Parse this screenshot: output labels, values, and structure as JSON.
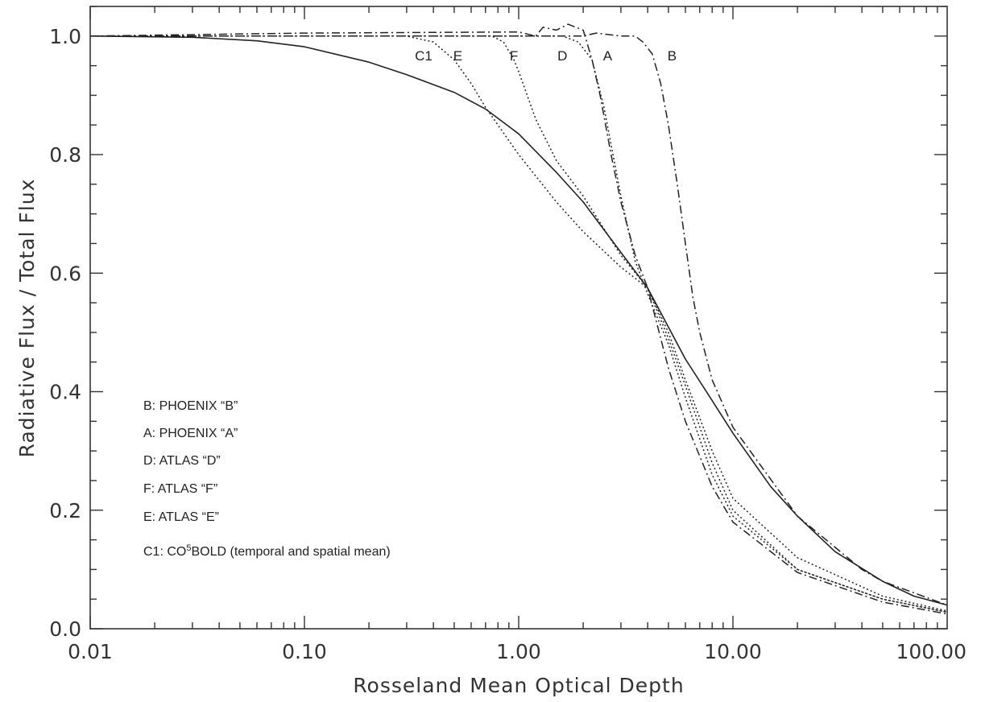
{
  "chart_data": {
    "type": "line",
    "title": "",
    "xlabel": "Rosseland Mean Optical Depth",
    "ylabel": "Radiative Flux / Total Flux",
    "xscale": "log",
    "xlim": [
      0.01,
      100
    ],
    "ylim": [
      0.0,
      1.05
    ],
    "grid": false,
    "x_tick_labels": [
      "0.01",
      "0.10",
      "1.00",
      "10.00",
      "100.00"
    ],
    "x_tick_values": [
      0.01,
      0.1,
      1,
      10,
      100
    ],
    "y_tick_labels": [
      "0.0",
      "0.2",
      "0.4",
      "0.6",
      "0.8",
      "1.0"
    ],
    "y_tick_values": [
      0.0,
      0.2,
      0.4,
      0.6,
      0.8,
      1.0
    ],
    "legend_position": "lower-left",
    "legend": [
      {
        "key": "B",
        "text": "B: PHOENIX “B”"
      },
      {
        "key": "A",
        "text": "A: PHOENIX “A”"
      },
      {
        "key": "D",
        "text": "D: ATLAS “D”"
      },
      {
        "key": "F",
        "text": "F:  ATLAS “F”"
      },
      {
        "key": "E",
        "text": "E:  ATLAS “E”"
      },
      {
        "key": "C1",
        "text_pre": "C1: CO",
        "text_sup": "5",
        "text_post": "BOLD  (temporal and spatial mean)"
      }
    ],
    "curve_labels": [
      {
        "text": "C1",
        "x": 0.36,
        "y": 0.985
      },
      {
        "text": "E",
        "x": 0.52,
        "y": 0.985
      },
      {
        "text": "F",
        "x": 0.95,
        "y": 0.985
      },
      {
        "text": "D",
        "x": 1.6,
        "y": 0.985
      },
      {
        "text": "A",
        "x": 2.6,
        "y": 0.985
      },
      {
        "text": "B",
        "x": 5.2,
        "y": 0.985
      }
    ],
    "series": [
      {
        "key": "C1",
        "style": "solid",
        "x": [
          0.01,
          0.03,
          0.06,
          0.1,
          0.2,
          0.3,
          0.5,
          0.7,
          1.0,
          1.5,
          2.0,
          3.0,
          4.0,
          6.0,
          8.0,
          10.0,
          15.0,
          20.0,
          30.0,
          50.0,
          70.0,
          100.0
        ],
        "y": [
          1.0,
          0.998,
          0.992,
          0.982,
          0.956,
          0.935,
          0.905,
          0.877,
          0.835,
          0.77,
          0.72,
          0.635,
          0.575,
          0.455,
          0.385,
          0.33,
          0.24,
          0.19,
          0.13,
          0.08,
          0.055,
          0.04
        ]
      },
      {
        "key": "E",
        "style": "dotted",
        "x": [
          0.01,
          0.1,
          0.3,
          0.4,
          0.5,
          0.6,
          0.7,
          1.0,
          1.5,
          2.0,
          3.0,
          4.0,
          5.0,
          6.0,
          8.0,
          10.0,
          20.0,
          50.0,
          100.0
        ],
        "y": [
          1.0,
          1.0,
          1.0,
          0.99,
          0.96,
          0.92,
          0.88,
          0.8,
          0.72,
          0.67,
          0.61,
          0.575,
          0.5,
          0.42,
          0.3,
          0.22,
          0.12,
          0.055,
          0.03
        ]
      },
      {
        "key": "F",
        "style": "dotted",
        "x": [
          0.01,
          0.1,
          0.5,
          0.75,
          0.85,
          0.95,
          1.0,
          1.2,
          1.5,
          2.0,
          3.0,
          4.0,
          5.0,
          6.0,
          8.0,
          10.0,
          20.0,
          50.0,
          100.0
        ],
        "y": [
          1.0,
          1.0,
          1.0,
          1.0,
          0.99,
          0.96,
          0.94,
          0.86,
          0.79,
          0.73,
          0.63,
          0.575,
          0.49,
          0.41,
          0.28,
          0.2,
          0.1,
          0.05,
          0.028
        ]
      },
      {
        "key": "D",
        "style": "dotted",
        "x": [
          0.01,
          0.1,
          1.0,
          1.6,
          1.9,
          2.2,
          2.5,
          3.0,
          3.5,
          4.0,
          5.0,
          6.0,
          8.0,
          10.0,
          20.0,
          50.0,
          100.0
        ],
        "y": [
          1.0,
          1.0,
          1.0,
          1.0,
          0.99,
          0.96,
          0.88,
          0.73,
          0.62,
          0.565,
          0.48,
          0.39,
          0.26,
          0.19,
          0.1,
          0.05,
          0.028
        ]
      },
      {
        "key": "A",
        "style": "dashdot",
        "x": [
          0.01,
          0.1,
          1.0,
          1.2,
          1.3,
          1.5,
          1.7,
          2.0,
          2.2,
          2.4,
          2.7,
          3.0,
          3.5,
          4.0,
          5.0,
          6.0,
          8.0,
          10.0,
          20.0,
          50.0,
          100.0
        ],
        "y": [
          1.0,
          1.005,
          1.007,
          1.0,
          1.015,
          1.01,
          1.02,
          1.01,
          0.96,
          0.9,
          0.8,
          0.72,
          0.63,
          0.575,
          0.44,
          0.35,
          0.24,
          0.18,
          0.095,
          0.045,
          0.025
        ]
      },
      {
        "key": "B",
        "style": "dashdot",
        "x": [
          0.01,
          0.1,
          1.0,
          2.0,
          2.3,
          3.0,
          3.5,
          3.8,
          4.2,
          4.6,
          5.0,
          5.5,
          6.0,
          6.5,
          7.0,
          8.0,
          10.0,
          20.0,
          40.0,
          50.0,
          100.0
        ],
        "y": [
          1.0,
          1.0,
          1.0,
          1.0,
          1.005,
          1.0,
          1.0,
          0.99,
          0.97,
          0.92,
          0.85,
          0.75,
          0.65,
          0.56,
          0.5,
          0.42,
          0.34,
          0.19,
          0.1,
          0.08,
          0.04
        ]
      }
    ]
  }
}
